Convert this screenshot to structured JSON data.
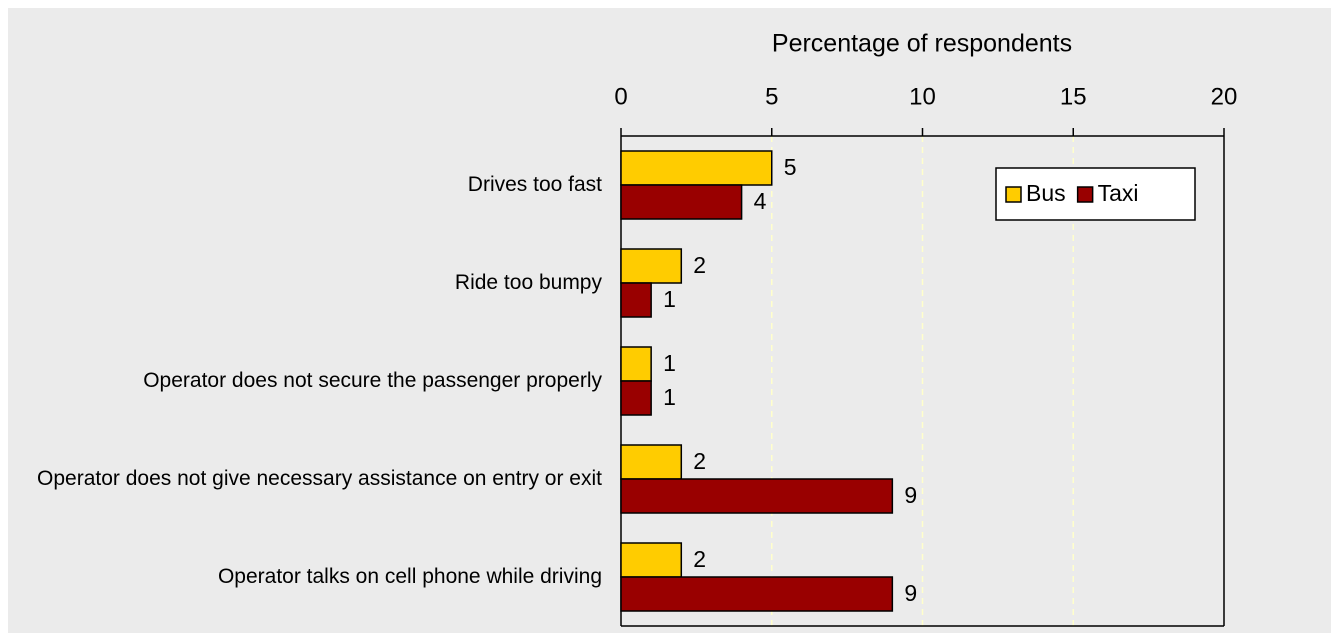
{
  "chart_data": {
    "type": "bar",
    "orientation": "horizontal",
    "x_label": "Percentage of respondents",
    "categories": [
      "Drives too fast",
      "Ride too bumpy",
      "Operator does not secure the passenger properly",
      "Operator does not give necessary assistance on entry or exit",
      "Operator talks on cell phone while driving"
    ],
    "series": [
      {
        "name": "Bus",
        "color": "#ffcc00",
        "values": [
          5,
          2,
          1,
          2,
          2
        ]
      },
      {
        "name": "Taxi",
        "color": "#990000",
        "values": [
          4,
          1,
          1,
          9,
          9
        ]
      }
    ],
    "xlim": [
      0,
      20
    ],
    "xticks": [
      0,
      5,
      10,
      15,
      20
    ],
    "grid": true,
    "legend": "upper right"
  }
}
